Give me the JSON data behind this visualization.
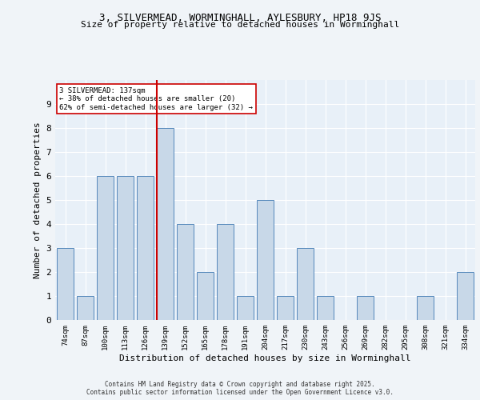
{
  "title1": "3, SILVERMEAD, WORMINGHALL, AYLESBURY, HP18 9JS",
  "title2": "Size of property relative to detached houses in Worminghall",
  "xlabel": "Distribution of detached houses by size in Worminghall",
  "ylabel": "Number of detached properties",
  "categories": [
    "74sqm",
    "87sqm",
    "100sqm",
    "113sqm",
    "126sqm",
    "139sqm",
    "152sqm",
    "165sqm",
    "178sqm",
    "191sqm",
    "204sqm",
    "217sqm",
    "230sqm",
    "243sqm",
    "256sqm",
    "269sqm",
    "282sqm",
    "295sqm",
    "308sqm",
    "321sqm",
    "334sqm"
  ],
  "values": [
    3,
    1,
    6,
    6,
    6,
    8,
    4,
    2,
    4,
    1,
    5,
    1,
    3,
    1,
    0,
    1,
    0,
    0,
    1,
    0,
    2
  ],
  "bar_color": "#c8d8e8",
  "bar_edge_color": "#5588bb",
  "ref_line_index": 5,
  "ref_line_color": "#cc0000",
  "annotation_text": "3 SILVERMEAD: 137sqm\n← 38% of detached houses are smaller (20)\n62% of semi-detached houses are larger (32) →",
  "annotation_box_color": "#ffffff",
  "annotation_box_edge_color": "#cc0000",
  "ylim": [
    0,
    10
  ],
  "yticks": [
    0,
    1,
    2,
    3,
    4,
    5,
    6,
    7,
    8,
    9,
    10
  ],
  "footer": "Contains HM Land Registry data © Crown copyright and database right 2025.\nContains public sector information licensed under the Open Government Licence v3.0.",
  "bg_color": "#e8f0f8",
  "grid_color": "#ffffff",
  "fig_bg_color": "#f0f4f8"
}
